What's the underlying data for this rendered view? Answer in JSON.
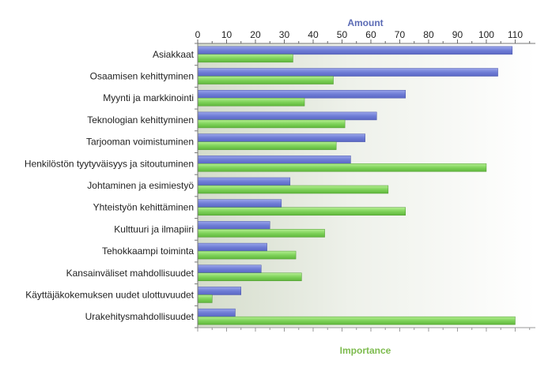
{
  "chart_data": {
    "type": "bar",
    "orientation": "horizontal",
    "xlabel_top": "Amount",
    "xlabel_bottom": "Importance",
    "xlim": [
      0,
      117
    ],
    "xticks": [
      0,
      10,
      20,
      30,
      40,
      50,
      60,
      70,
      80,
      90,
      100,
      110
    ],
    "categories": [
      "Asiakkaat",
      "Osaamisen kehittyminen",
      "Myynti ja markkinointi",
      "Teknologian kehittyminen",
      "Tarjooman voimistuminen",
      "Henkilöstön tyytyväisyys ja sitoutuminen",
      "Johtaminen ja esimiestyö",
      "Yhteistyön kehittäminen",
      "Kulttuuri ja ilmapiiri",
      "Tehokkaampi toiminta",
      "Kansainväliset mahdollisuudet",
      "Käyttäjäkokemuksen uudet ulottuvuudet",
      "Urakehitysmahdollisuudet"
    ],
    "series": [
      {
        "values": [
          109,
          104,
          72,
          62,
          58,
          53,
          32,
          29,
          25,
          24,
          22,
          15,
          13
        ],
        "color": "#6f7dd6"
      },
      {
        "values": [
          33,
          47,
          37,
          51,
          48,
          100,
          66,
          72,
          44,
          34,
          36,
          5,
          110
        ],
        "color": "#7fd35a"
      }
    ],
    "grid": false,
    "legend": "none"
  }
}
